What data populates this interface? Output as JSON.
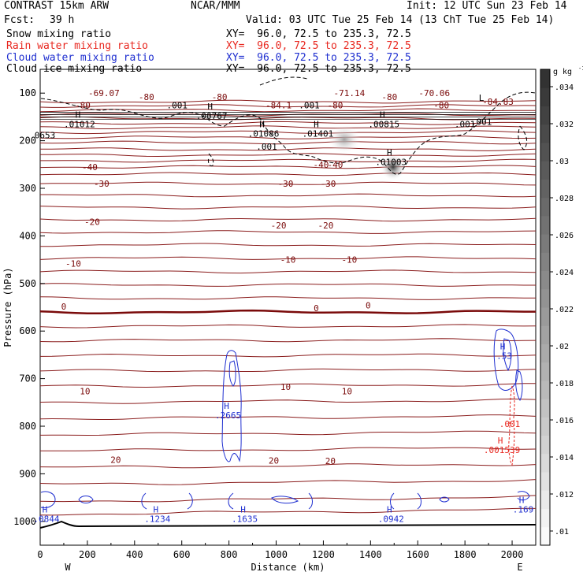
{
  "header": {
    "left_title": "CONTRAST 15km ARW",
    "center_title": "NCAR/MMM",
    "init": "Init: 12 UTC Sun 23 Feb 14",
    "fcst_label": "Fcst:",
    "fcst_value": "39 h",
    "valid": "Valid: 03 UTC Tue 25 Feb 14 (13 ChT Tue 25 Feb 14)",
    "fields": [
      {
        "name": "Snow mixing ratio",
        "xy": "XY=  96.0, 72.5 to 235.3, 72.5",
        "color": "#000000"
      },
      {
        "name": "Rain water mixing ratio",
        "xy": "XY=  96.0, 72.5 to 235.3, 72.5",
        "color": "#e8261e"
      },
      {
        "name": "Cloud water mixing ratio",
        "xy": "XY=  96.0, 72.5 to 235.3, 72.5",
        "color": "#1f2fd0"
      },
      {
        "name": "Cloud ice mixing ratio",
        "xy": "XY=  96.0, 72.5 to 235.3, 72.5",
        "color": "#000000"
      }
    ]
  },
  "chart_data": {
    "type": "contour",
    "xlabel": "Distance (km)",
    "ylabel": "Pressure (hPa)",
    "x_ticks": [
      0,
      200,
      400,
      600,
      800,
      1000,
      1200,
      1400,
      1600,
      1800,
      2000
    ],
    "y_ticks": [
      100,
      200,
      300,
      400,
      500,
      600,
      700,
      800,
      900,
      1000
    ],
    "xlim": [
      0,
      2100
    ],
    "ylim": [
      1050,
      50
    ],
    "x_end_labels": {
      "left": "W",
      "right": "E"
    },
    "colorbar": {
      "unit_label": "g kg",
      "unit_exponent": "-1",
      "ticks": [
        ".01",
        ".012",
        ".014",
        ".016",
        ".018",
        ".02",
        ".022",
        ".024",
        ".026",
        ".028",
        ".03",
        ".032",
        ".034"
      ]
    },
    "temperature_labels": [
      {
        "text": "-69.07",
        "x": 270,
        "p": 100
      },
      {
        "text": "-80",
        "x": 450,
        "p": 108
      },
      {
        "text": "-80",
        "x": 760,
        "p": 108
      },
      {
        "text": "-71.14",
        "x": 1310,
        "p": 100
      },
      {
        "text": "-80",
        "x": 1480,
        "p": 108
      },
      {
        "text": "-70.06",
        "x": 1670,
        "p": 100
      },
      {
        "text": "-80",
        "x": 180,
        "p": 125
      },
      {
        "text": "-84.1",
        "x": 1010,
        "p": 125
      },
      {
        "text": "-80",
        "x": 1250,
        "p": 125
      },
      {
        "text": "-80",
        "x": 1700,
        "p": 125
      },
      {
        "text": "-84.83",
        "x": 1940,
        "p": 118
      },
      {
        "text": "-40",
        "x": 210,
        "p": 255
      },
      {
        "text": "-40",
        "x": 1190,
        "p": 250
      },
      {
        "text": "-40",
        "x": 1250,
        "p": 250
      },
      {
        "text": "-30",
        "x": 260,
        "p": 290
      },
      {
        "text": "-30",
        "x": 1040,
        "p": 290
      },
      {
        "text": "-30",
        "x": 1220,
        "p": 290
      },
      {
        "text": "-20",
        "x": 220,
        "p": 370
      },
      {
        "text": "-20",
        "x": 1010,
        "p": 378
      },
      {
        "text": "-20",
        "x": 1210,
        "p": 378
      },
      {
        "text": "-10",
        "x": 140,
        "p": 458
      },
      {
        "text": "-10",
        "x": 1050,
        "p": 450
      },
      {
        "text": "-10",
        "x": 1310,
        "p": 450
      },
      {
        "text": "0",
        "x": 100,
        "p": 548
      },
      {
        "text": "0",
        "x": 1170,
        "p": 552
      },
      {
        "text": "0",
        "x": 1390,
        "p": 546
      },
      {
        "text": "10",
        "x": 190,
        "p": 726
      },
      {
        "text": "10",
        "x": 1040,
        "p": 717
      },
      {
        "text": "10",
        "x": 1300,
        "p": 726
      },
      {
        "text": "20",
        "x": 320,
        "p": 870
      },
      {
        "text": "20",
        "x": 990,
        "p": 872
      },
      {
        "text": "20",
        "x": 1230,
        "p": 873
      }
    ],
    "snow_labels": [
      {
        "text": ".001",
        "x": 580,
        "p": 125
      },
      {
        "text": ".001",
        "x": 1140,
        "p": 125
      },
      {
        "text": ".001",
        "x": 1800,
        "p": 165
      },
      {
        "text": ".001",
        "x": 1870,
        "p": 160
      },
      {
        "text": ".001",
        "x": 960,
        "p": 212
      },
      {
        "text": "H",
        "x": 160,
        "p": 145,
        "value": ".01012"
      },
      {
        "text": "H",
        "x": 720,
        "p": 128,
        "value": ".00767"
      },
      {
        "text": "H",
        "x": 940,
        "p": 165,
        "value": ".01086"
      },
      {
        "text": "H",
        "x": 1170,
        "p": 165,
        "value": ".01401"
      },
      {
        "text": "H",
        "x": 1450,
        "p": 145,
        "value": ".00815"
      },
      {
        "text": "L",
        "x": 1870,
        "p": 110
      },
      {
        "text": "H",
        "x": 1480,
        "p": 225,
        "value": ".01003"
      },
      {
        "text": "0653",
        "x": 20,
        "p": 188
      }
    ],
    "cloud_water_labels": [
      {
        "text": "H",
        "x": 790,
        "p": 757,
        "value": ".2665"
      },
      {
        "text": "H",
        "x": 1960,
        "p": 632,
        "value": ".53"
      },
      {
        "text": "H",
        "x": 490,
        "p": 975,
        "value": ".1234"
      },
      {
        "text": "H",
        "x": 860,
        "p": 975,
        "value": ".1635"
      },
      {
        "text": "H",
        "x": 1480,
        "p": 975,
        "value": ".0942"
      },
      {
        "text": "H",
        "x": 20,
        "p": 975,
        "value": ".0844"
      },
      {
        "text": "H",
        "x": 2040,
        "p": 955,
        "value": ".169"
      }
    ],
    "rain_labels": [
      {
        "text": ".001",
        "x": 1990,
        "p": 795
      },
      {
        "text": "H",
        "x": 1950,
        "p": 830,
        "value": ".001539"
      }
    ]
  }
}
